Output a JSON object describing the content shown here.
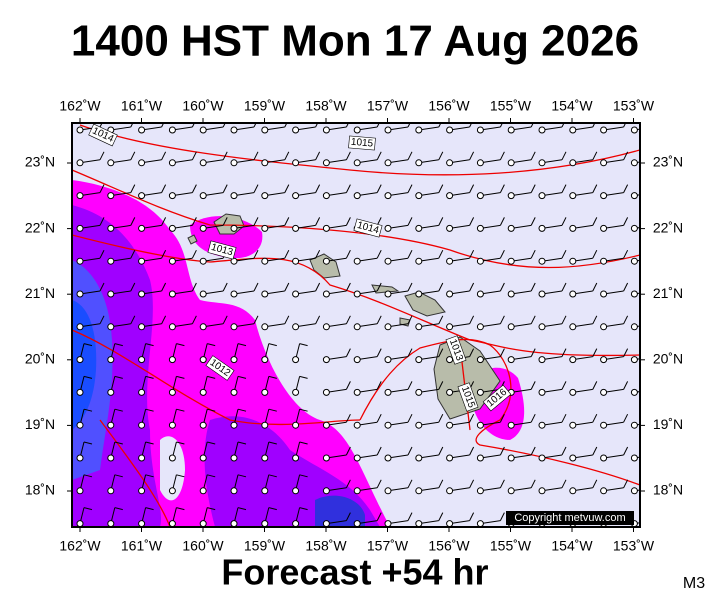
{
  "title": "1400 HST Mon 17 Aug 2026",
  "longitude_labels": [
    "162˚W",
    "161˚W",
    "160˚W",
    "159˚W",
    "158˚W",
    "157˚W",
    "156˚W",
    "155˚W",
    "154˚W",
    "153˚W"
  ],
  "latitude_labels": [
    "23˚N",
    "22˚N",
    "21˚N",
    "20˚N",
    "19˚N",
    "18˚N"
  ],
  "isobar_labels": [
    "1014",
    "1015",
    "1014",
    "1013",
    "1012",
    "1013",
    "1015",
    "1016"
  ],
  "copyright": "Copyright metvuw.com",
  "footer": "Forecast +54 hr",
  "code": "M3"
}
